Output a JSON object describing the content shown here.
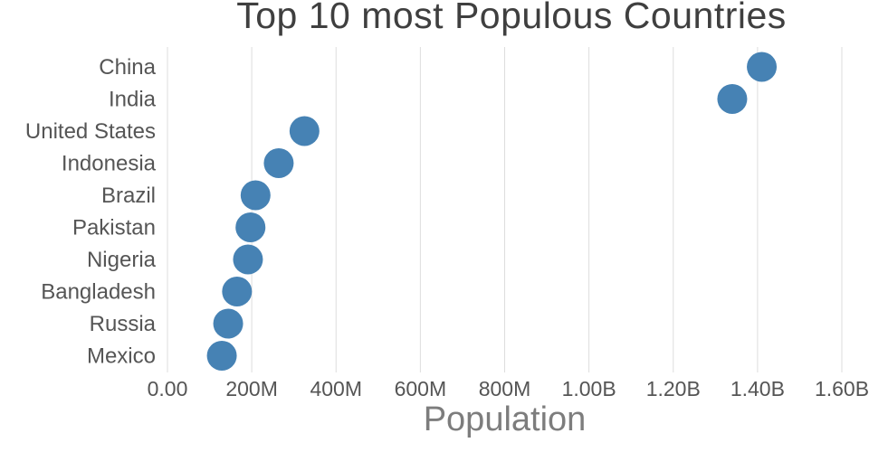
{
  "chart_data": {
    "type": "scatter",
    "title": "Top 10 most Populous Countries",
    "xlabel": "Population",
    "ylabel": "",
    "grid": "vertical",
    "legend": "none",
    "marker_color": "#4682b4",
    "grid_color": "#dddddd",
    "tick_label_color": "#555555",
    "category_label_color": "#555555",
    "categories": [
      "China",
      "India",
      "United States",
      "Indonesia",
      "Brazil",
      "Pakistan",
      "Nigeria",
      "Bangladesh",
      "Russia",
      "Mexico"
    ],
    "values_millions": [
      1410,
      1340,
      325,
      264,
      209,
      197,
      191,
      165,
      144,
      129
    ],
    "xlim_millions": [
      0,
      1600
    ],
    "x_ticks": [
      {
        "value": 0,
        "label": "0.00"
      },
      {
        "value": 200,
        "label": "200M"
      },
      {
        "value": 400,
        "label": "400M"
      },
      {
        "value": 600,
        "label": "600M"
      },
      {
        "value": 800,
        "label": "800M"
      },
      {
        "value": 1000,
        "label": "1.00B"
      },
      {
        "value": 1200,
        "label": "1.20B"
      },
      {
        "value": 1400,
        "label": "1.40B"
      },
      {
        "value": 1600,
        "label": "1.60B"
      }
    ]
  }
}
